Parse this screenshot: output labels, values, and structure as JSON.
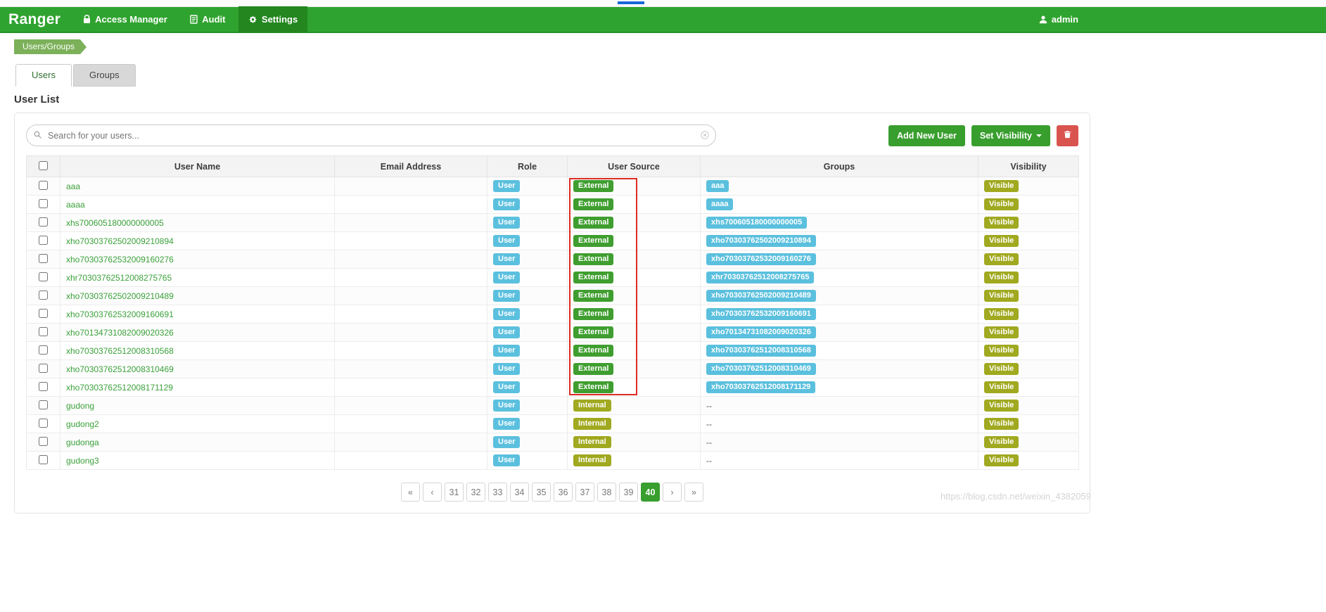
{
  "colors": {
    "navbar_green": "#2fa32f",
    "navbar_active_green": "#23861f",
    "breadcrumb_green": "#7cb15a",
    "button_green": "#389e2d",
    "button_red": "#d9534f",
    "badge_blue": "#5bc0de",
    "badge_green": "#3f9e2f",
    "badge_olive": "#a0a91f",
    "link_green": "#3ba13b",
    "annotation_red": "#dd2c23"
  },
  "navbar": {
    "brand": "Ranger",
    "items": [
      {
        "label": "Access Manager",
        "icon": "lock-icon",
        "active": false
      },
      {
        "label": "Audit",
        "icon": "document-icon",
        "active": false
      },
      {
        "label": "Settings",
        "icon": "gear-icon",
        "active": true
      }
    ],
    "user": {
      "label": "admin",
      "icon": "person-icon"
    }
  },
  "breadcrumb": {
    "label": "Users/Groups"
  },
  "tabs": [
    {
      "label": "Users",
      "active": true
    },
    {
      "label": "Groups",
      "active": false
    }
  ],
  "page_title": "User List",
  "toolbar": {
    "search_placeholder": "Search for your users...",
    "add_new_user": "Add New User",
    "set_visibility": "Set Visibility"
  },
  "table": {
    "columns": [
      "User Name",
      "Email Address",
      "Role",
      "User Source",
      "Groups",
      "Visibility"
    ],
    "empty_groups_text": "--",
    "rows": [
      {
        "name": "aaa",
        "email": "",
        "role": "User",
        "source": "External",
        "groups": [
          "aaa"
        ],
        "visibility": "Visible"
      },
      {
        "name": "aaaa",
        "email": "",
        "role": "User",
        "source": "External",
        "groups": [
          "aaaa"
        ],
        "visibility": "Visible"
      },
      {
        "name": "xhs700605180000000005",
        "email": "",
        "role": "User",
        "source": "External",
        "groups": [
          "xhs700605180000000005"
        ],
        "visibility": "Visible"
      },
      {
        "name": "xho70303762502009210894",
        "email": "",
        "role": "User",
        "source": "External",
        "groups": [
          "xho70303762502009210894"
        ],
        "visibility": "Visible"
      },
      {
        "name": "xho70303762532009160276",
        "email": "",
        "role": "User",
        "source": "External",
        "groups": [
          "xho70303762532009160276"
        ],
        "visibility": "Visible"
      },
      {
        "name": "xhr70303762512008275765",
        "email": "",
        "role": "User",
        "source": "External",
        "groups": [
          "xhr70303762512008275765"
        ],
        "visibility": "Visible"
      },
      {
        "name": "xho70303762502009210489",
        "email": "",
        "role": "User",
        "source": "External",
        "groups": [
          "xho70303762502009210489"
        ],
        "visibility": "Visible"
      },
      {
        "name": "xho70303762532009160691",
        "email": "",
        "role": "User",
        "source": "External",
        "groups": [
          "xho70303762532009160691"
        ],
        "visibility": "Visible"
      },
      {
        "name": "xho70134731082009020326",
        "email": "",
        "role": "User",
        "source": "External",
        "groups": [
          "xho70134731082009020326"
        ],
        "visibility": "Visible"
      },
      {
        "name": "xho70303762512008310568",
        "email": "",
        "role": "User",
        "source": "External",
        "groups": [
          "xho70303762512008310568"
        ],
        "visibility": "Visible"
      },
      {
        "name": "xho70303762512008310469",
        "email": "",
        "role": "User",
        "source": "External",
        "groups": [
          "xho70303762512008310469"
        ],
        "visibility": "Visible"
      },
      {
        "name": "xho70303762512008171129",
        "email": "",
        "role": "User",
        "source": "External",
        "groups": [
          "xho70303762512008171129"
        ],
        "visibility": "Visible"
      },
      {
        "name": "gudong",
        "email": "",
        "role": "User",
        "source": "Internal",
        "groups": [],
        "visibility": "Visible"
      },
      {
        "name": "gudong2",
        "email": "",
        "role": "User",
        "source": "Internal",
        "groups": [],
        "visibility": "Visible"
      },
      {
        "name": "gudonga",
        "email": "",
        "role": "User",
        "source": "Internal",
        "groups": [],
        "visibility": "Visible"
      },
      {
        "name": "gudong3",
        "email": "",
        "role": "User",
        "source": "Internal",
        "groups": [],
        "visibility": "Visible"
      }
    ]
  },
  "pagination": {
    "first": "«",
    "prev": "‹",
    "pages": [
      "31",
      "32",
      "33",
      "34",
      "35",
      "36",
      "37",
      "38",
      "39",
      "40"
    ],
    "active": "40",
    "next": "›",
    "last": "»"
  },
  "watermark": "https://blog.csdn.net/weixin_4382059"
}
